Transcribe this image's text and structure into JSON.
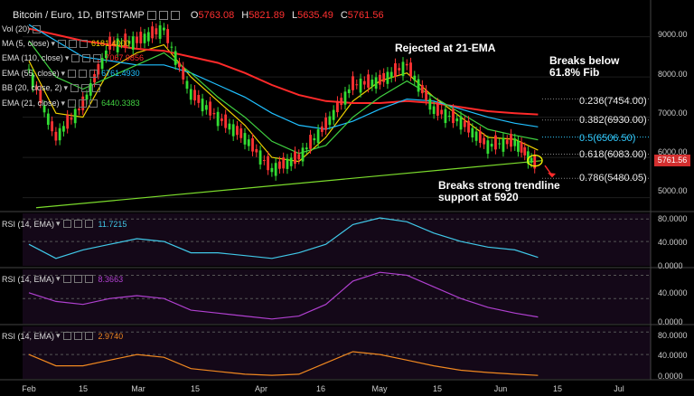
{
  "header": {
    "symbol": "Bitcoin / Euro, 1D, BITSTAMP",
    "open_label": "O",
    "open": "5763.08",
    "high_label": "H",
    "high": "5821.89",
    "low_label": "L",
    "low": "5635.49",
    "close_label": "C",
    "close": "5761.56"
  },
  "indicators": [
    {
      "label": "Vol (20)",
      "value": "",
      "color": "#e6e6e6"
    },
    {
      "label": "MA (5, close)",
      "value": "6181.4000",
      "color": "#f0d000"
    },
    {
      "label": "EMA (110, close)",
      "value": "7067.9856",
      "color": "#ff2a2a"
    },
    {
      "label": "EMA (55, close)",
      "value": "6761.4930",
      "color": "#20c0ff"
    },
    {
      "label": "BB (20, close, 2)",
      "value": "",
      "color": "#e6e6e6"
    },
    {
      "label": "EMA (21, close)",
      "value": "6440.3383",
      "color": "#40d040"
    }
  ],
  "annotations": {
    "rejected": "Rejected at 21-EMA",
    "breaks_below": "Breaks below\n61.8% Fib",
    "breaks_trend": "Breaks strong trendline\nsupport at 5920"
  },
  "fib_levels": [
    {
      "label": "0.236(7454.00)",
      "color": "#e8e8e8"
    },
    {
      "label": "0.382(6930.00)",
      "color": "#e8e8e8"
    },
    {
      "label": "0.5(6506.50)",
      "color": "#33ccff"
    },
    {
      "label": "0.618(6083.00)",
      "color": "#e8e8e8"
    },
    {
      "label": "0.786(5480.05)",
      "color": "#e8e8e8"
    }
  ],
  "price_tag": "5761.56",
  "y_axis_ticks": [
    "9000.00",
    "8000.00",
    "7000.00",
    "6000.00",
    "5000.00"
  ],
  "x_axis_ticks": [
    "Feb",
    "15",
    "Mar",
    "15",
    "Apr",
    "16",
    "May",
    "15",
    "Jun",
    "15",
    "Jul"
  ],
  "rsi_panels": [
    {
      "label": "RSI (14, EMA)",
      "value": "11.7215",
      "color": "#40c8e8",
      "ticks": [
        "80.0000",
        "40.0000",
        "0.0000"
      ]
    },
    {
      "label": "RSI (14, EMA)",
      "value": "8.3663",
      "color": "#b040d0",
      "ticks": [
        "80.0000",
        "40.0000",
        "0.0000"
      ]
    },
    {
      "label": "RSI (14, EMA)",
      "value": "2.9740",
      "color": "#f08820",
      "ticks": [
        "80.0000",
        "40.0000",
        "0.0000"
      ]
    }
  ],
  "chart_data": {
    "type": "line",
    "title": "Bitcoin / Euro, 1D, BITSTAMP",
    "x": [
      "2018-01-29",
      "2018-02-05",
      "2018-02-12",
      "2018-02-19",
      "2018-02-26",
      "2018-03-05",
      "2018-03-12",
      "2018-03-19",
      "2018-03-26",
      "2018-04-02",
      "2018-04-09",
      "2018-04-16",
      "2018-04-23",
      "2018-04-30",
      "2018-05-07",
      "2018-05-14",
      "2018-05-21",
      "2018-05-28",
      "2018-06-04",
      "2018-06-10"
    ],
    "ylim": [
      4700,
      9800
    ],
    "series": [
      {
        "name": "Price (close)",
        "values": [
          8200,
          6500,
          7300,
          8800,
          8900,
          9200,
          7600,
          7000,
          6500,
          5700,
          6000,
          6800,
          7800,
          7900,
          8300,
          7200,
          6900,
          6300,
          6400,
          5762
        ]
      },
      {
        "name": "MA (5, close)",
        "values": [
          8400,
          7100,
          7000,
          8200,
          8600,
          8800,
          8000,
          7400,
          6800,
          6000,
          5900,
          6500,
          7400,
          7900,
          8100,
          7500,
          7000,
          6500,
          6450,
          6181
        ]
      },
      {
        "name": "EMA (110, close)",
        "values": [
          9200,
          9050,
          8900,
          8800,
          8700,
          8650,
          8500,
          8350,
          8100,
          7800,
          7550,
          7400,
          7350,
          7350,
          7400,
          7350,
          7250,
          7150,
          7100,
          7068
        ]
      },
      {
        "name": "EMA (55, close)",
        "values": [
          9300,
          8900,
          8500,
          8400,
          8300,
          8300,
          8100,
          7800,
          7500,
          7100,
          6800,
          6700,
          6900,
          7200,
          7450,
          7400,
          7200,
          7000,
          6850,
          6761
        ]
      },
      {
        "name": "EMA (21, close)",
        "values": [
          8900,
          8000,
          7700,
          8000,
          8300,
          8600,
          8100,
          7500,
          7000,
          6400,
          6100,
          6300,
          7000,
          7500,
          7900,
          7500,
          7100,
          6700,
          6550,
          6440
        ]
      }
    ],
    "fib_retracement": [
      {
        "level": 0.236,
        "price": 7454.0
      },
      {
        "level": 0.382,
        "price": 6930.0
      },
      {
        "level": 0.5,
        "price": 6506.5
      },
      {
        "level": 0.618,
        "price": 6083.0
      },
      {
        "level": 0.786,
        "price": 5480.05
      }
    ],
    "trendline_support": 5920,
    "rsi": [
      {
        "values": [
          35,
          10,
          25,
          35,
          45,
          40,
          20,
          20,
          15,
          10,
          20,
          35,
          70,
          82,
          75,
          55,
          40,
          30,
          25,
          11.72
        ]
      },
      {
        "values": [
          50,
          35,
          30,
          40,
          45,
          40,
          20,
          15,
          10,
          5,
          10,
          30,
          70,
          85,
          80,
          60,
          40,
          25,
          15,
          8.37
        ]
      },
      {
        "values": [
          40,
          20,
          20,
          30,
          40,
          35,
          15,
          10,
          5,
          3,
          5,
          25,
          45,
          40,
          30,
          20,
          12,
          8,
          5,
          2.97
        ]
      }
    ]
  }
}
